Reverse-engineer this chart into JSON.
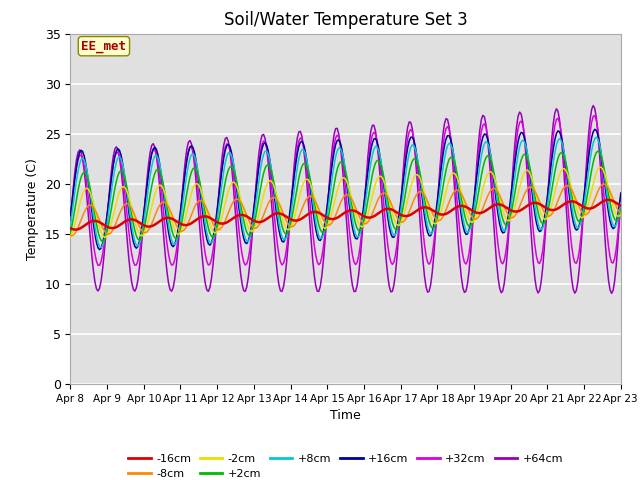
{
  "title": "Soil/Water Temperature Set 3",
  "xlabel": "Time",
  "ylabel": "Temperature (C)",
  "ylim": [
    0,
    35
  ],
  "xlim": [
    0,
    15
  ],
  "xtick_labels": [
    "Apr 8",
    "Apr 9",
    "Apr 10",
    "Apr 11",
    "Apr 12",
    "Apr 13",
    "Apr 14",
    "Apr 15",
    "Apr 16",
    "Apr 17",
    "Apr 18",
    "Apr 19",
    "Apr 20",
    "Apr 21",
    "Apr 22",
    "Apr 23"
  ],
  "series_labels": [
    "-16cm",
    "-8cm",
    "-2cm",
    "+2cm",
    "+8cm",
    "+16cm",
    "+32cm",
    "+64cm"
  ],
  "series_colors": [
    "#dd0000",
    "#ff8800",
    "#eedd00",
    "#00bb00",
    "#00cccc",
    "#000099",
    "#dd00dd",
    "#9900bb"
  ],
  "annotation_text": "EE_met",
  "annotation_color": "#aa0000",
  "annotation_bg": "#ffffcc",
  "title_fontsize": 12
}
